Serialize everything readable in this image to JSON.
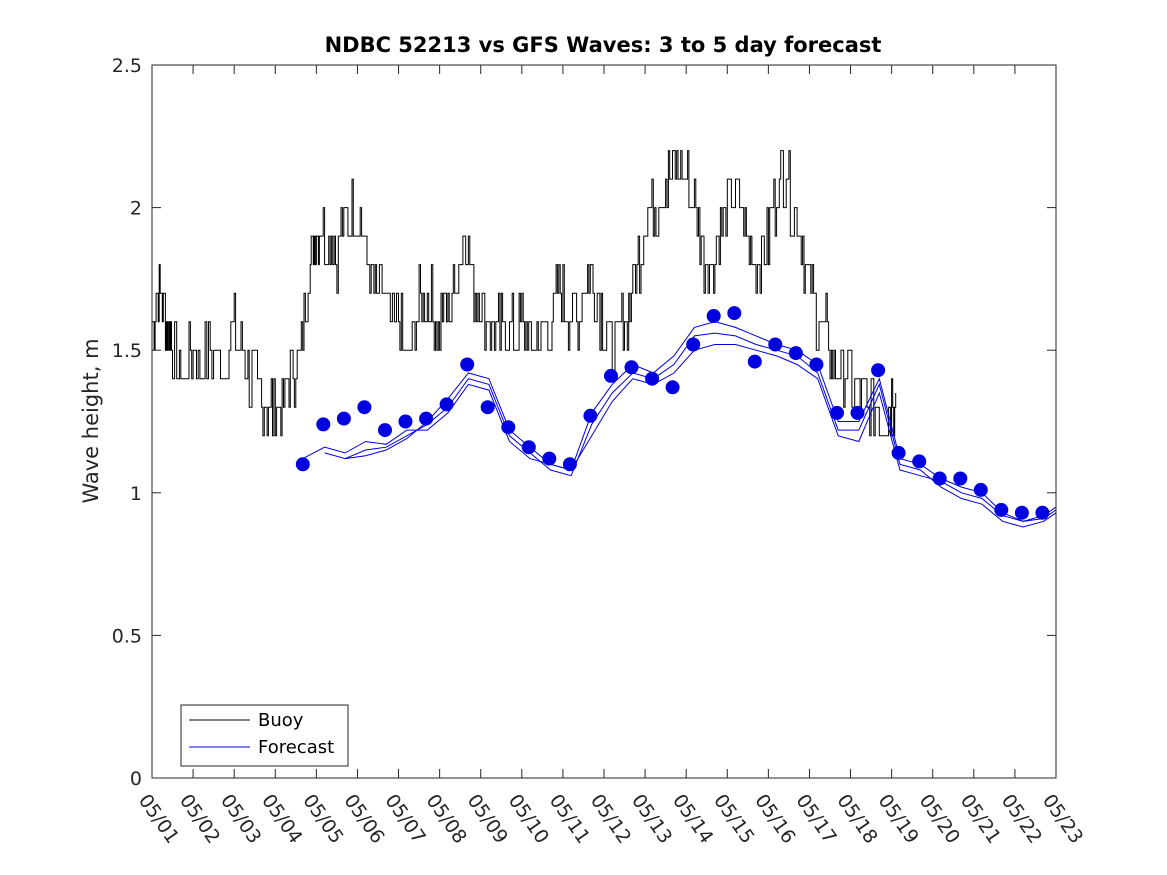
{
  "chart_data": {
    "type": "line",
    "title": "NDBC 52213 vs GFS Waves: 3 to 5 day forecast",
    "xlabel": "",
    "ylabel": "Wave height, m",
    "xlim": [
      0,
      22
    ],
    "ylim": [
      0,
      2.5
    ],
    "x_tick_labels": [
      "05/01",
      "05/02",
      "05/03",
      "05/04",
      "05/05",
      "05/06",
      "05/07",
      "05/08",
      "05/09",
      "05/10",
      "05/11",
      "05/12",
      "05/13",
      "05/14",
      "05/15",
      "05/16",
      "05/17",
      "05/18",
      "05/19",
      "05/20",
      "05/21",
      "05/22",
      "05/23"
    ],
    "y_ticks": [
      0,
      0.5,
      1,
      1.5,
      2,
      2.5
    ],
    "y_tick_labels": [
      "0",
      "0.5",
      "1",
      "1.5",
      "2",
      "2.5"
    ],
    "x_unit_note": "x values are days after 05/01 00:00",
    "grid": false,
    "legend": {
      "position": "bottom-left",
      "entries": [
        {
          "label": "Buoy",
          "color": "#000000"
        },
        {
          "label": "Forecast",
          "color": "#0000e0"
        }
      ]
    },
    "series": [
      {
        "name": "Buoy",
        "color": "#000000",
        "points": [
          [
            0,
            1.6
          ],
          [
            0.15,
            1.7
          ],
          [
            0.3,
            1.65
          ],
          [
            0.45,
            1.55
          ],
          [
            0.6,
            1.45
          ],
          [
            0.8,
            1.4
          ],
          [
            1.0,
            1.5
          ],
          [
            1.25,
            1.45
          ],
          [
            1.5,
            1.5
          ],
          [
            1.75,
            1.45
          ],
          [
            2.0,
            1.55
          ],
          [
            2.2,
            1.5
          ],
          [
            2.4,
            1.4
          ],
          [
            2.6,
            1.35
          ],
          [
            2.8,
            1.3
          ],
          [
            3.0,
            1.3
          ],
          [
            3.2,
            1.35
          ],
          [
            3.4,
            1.4
          ],
          [
            3.6,
            1.5
          ],
          [
            3.8,
            1.75
          ],
          [
            3.95,
            1.9
          ],
          [
            4.1,
            1.95
          ],
          [
            4.3,
            1.9
          ],
          [
            4.5,
            1.85
          ],
          [
            4.7,
            1.95
          ],
          [
            4.9,
            2.0
          ],
          [
            5.1,
            1.95
          ],
          [
            5.3,
            1.75
          ],
          [
            5.5,
            1.7
          ],
          [
            5.7,
            1.65
          ],
          [
            6.0,
            1.6
          ],
          [
            6.2,
            1.45
          ],
          [
            6.4,
            1.6
          ],
          [
            6.6,
            1.7
          ],
          [
            6.8,
            1.65
          ],
          [
            7.0,
            1.6
          ],
          [
            7.2,
            1.65
          ],
          [
            7.4,
            1.75
          ],
          [
            7.6,
            1.9
          ],
          [
            7.8,
            1.75
          ],
          [
            8.0,
            1.65
          ],
          [
            8.2,
            1.6
          ],
          [
            8.4,
            1.55
          ],
          [
            8.6,
            1.6
          ],
          [
            8.8,
            1.55
          ],
          [
            9.0,
            1.6
          ],
          [
            9.2,
            1.5
          ],
          [
            9.4,
            1.55
          ],
          [
            9.6,
            1.55
          ],
          [
            9.8,
            1.65
          ],
          [
            10.0,
            1.7
          ],
          [
            10.2,
            1.6
          ],
          [
            10.4,
            1.65
          ],
          [
            10.6,
            1.75
          ],
          [
            10.8,
            1.7
          ],
          [
            11.0,
            1.6
          ],
          [
            11.2,
            1.5
          ],
          [
            11.4,
            1.55
          ],
          [
            11.6,
            1.65
          ],
          [
            11.8,
            1.8
          ],
          [
            12.0,
            1.95
          ],
          [
            12.2,
            2.0
          ],
          [
            12.4,
            2.05
          ],
          [
            12.6,
            2.1
          ],
          [
            12.8,
            2.15
          ],
          [
            13.0,
            2.1
          ],
          [
            13.2,
            2.0
          ],
          [
            13.4,
            1.85
          ],
          [
            13.6,
            1.8
          ],
          [
            13.8,
            1.9
          ],
          [
            14.0,
            2.0
          ],
          [
            14.2,
            2.05
          ],
          [
            14.4,
            1.95
          ],
          [
            14.6,
            1.85
          ],
          [
            14.8,
            1.8
          ],
          [
            15.0,
            1.9
          ],
          [
            15.2,
            2.05
          ],
          [
            15.4,
            2.15
          ],
          [
            15.6,
            2.0
          ],
          [
            15.8,
            1.9
          ],
          [
            16.0,
            1.75
          ],
          [
            16.2,
            1.6
          ],
          [
            16.4,
            1.55
          ],
          [
            16.6,
            1.45
          ],
          [
            16.8,
            1.45
          ],
          [
            17.0,
            1.4
          ],
          [
            17.2,
            1.35
          ],
          [
            17.4,
            1.3
          ],
          [
            17.6,
            1.3
          ],
          [
            17.8,
            1.25
          ],
          [
            17.95,
            1.3
          ],
          [
            18.1,
            1.35
          ]
        ]
      },
      {
        "name": "Forecast",
        "color": "#0000e0",
        "markers": [
          [
            3.67,
            1.1
          ],
          [
            4.17,
            1.24
          ],
          [
            4.67,
            1.26
          ],
          [
            5.17,
            1.3
          ],
          [
            5.67,
            1.22
          ],
          [
            6.17,
            1.25
          ],
          [
            6.67,
            1.26
          ],
          [
            7.17,
            1.31
          ],
          [
            7.67,
            1.45
          ],
          [
            8.17,
            1.3
          ],
          [
            8.67,
            1.23
          ],
          [
            9.17,
            1.16
          ],
          [
            9.67,
            1.12
          ],
          [
            10.17,
            1.1
          ],
          [
            10.67,
            1.27
          ],
          [
            11.17,
            1.41
          ],
          [
            11.67,
            1.44
          ],
          [
            12.17,
            1.4
          ],
          [
            12.67,
            1.37
          ],
          [
            13.17,
            1.52
          ],
          [
            13.67,
            1.62
          ],
          [
            14.17,
            1.63
          ],
          [
            14.67,
            1.46
          ],
          [
            15.17,
            1.52
          ],
          [
            15.67,
            1.49
          ],
          [
            16.17,
            1.45
          ],
          [
            16.67,
            1.28
          ],
          [
            17.17,
            1.28
          ],
          [
            17.67,
            1.43
          ],
          [
            18.17,
            1.14
          ],
          [
            18.67,
            1.11
          ],
          [
            19.17,
            1.05
          ],
          [
            19.67,
            1.05
          ],
          [
            20.17,
            1.01
          ],
          [
            20.67,
            0.94
          ],
          [
            21.17,
            0.93
          ],
          [
            21.67,
            0.93
          ]
        ],
        "lines": [
          [
            [
              3.67,
              1.12
            ],
            [
              4.2,
              1.16
            ],
            [
              4.7,
              1.14
            ],
            [
              5.2,
              1.18
            ],
            [
              5.7,
              1.17
            ],
            [
              6.2,
              1.22
            ],
            [
              6.7,
              1.22
            ],
            [
              7.2,
              1.28
            ],
            [
              7.7,
              1.38
            ],
            [
              8.2,
              1.36
            ],
            [
              8.7,
              1.18
            ],
            [
              9.2,
              1.12
            ],
            [
              9.7,
              1.1
            ],
            [
              10.2,
              1.08
            ],
            [
              10.7,
              1.2
            ],
            [
              11.2,
              1.32
            ],
            [
              11.7,
              1.4
            ],
            [
              12.2,
              1.38
            ],
            [
              12.7,
              1.42
            ],
            [
              13.2,
              1.5
            ],
            [
              13.7,
              1.52
            ],
            [
              14.2,
              1.52
            ],
            [
              14.7,
              1.5
            ],
            [
              15.2,
              1.48
            ],
            [
              15.7,
              1.45
            ],
            [
              16.2,
              1.4
            ],
            [
              16.7,
              1.2
            ],
            [
              17.2,
              1.18
            ],
            [
              17.7,
              1.35
            ],
            [
              18.2,
              1.08
            ],
            [
              18.7,
              1.06
            ],
            [
              19.2,
              1.04
            ],
            [
              19.7,
              1.0
            ],
            [
              20.2,
              0.98
            ],
            [
              20.7,
              0.92
            ],
            [
              21.2,
              0.9
            ],
            [
              21.7,
              0.92
            ],
            [
              22.0,
              0.95
            ]
          ],
          [
            [
              4.2,
              1.14
            ],
            [
              4.7,
              1.12
            ],
            [
              5.2,
              1.15
            ],
            [
              5.7,
              1.16
            ],
            [
              6.2,
              1.2
            ],
            [
              6.7,
              1.24
            ],
            [
              7.2,
              1.3
            ],
            [
              7.7,
              1.4
            ],
            [
              8.2,
              1.38
            ],
            [
              8.7,
              1.2
            ],
            [
              9.2,
              1.14
            ],
            [
              9.7,
              1.08
            ],
            [
              10.2,
              1.06
            ],
            [
              10.7,
              1.24
            ],
            [
              11.2,
              1.35
            ],
            [
              11.7,
              1.42
            ],
            [
              12.2,
              1.4
            ],
            [
              12.7,
              1.45
            ],
            [
              13.2,
              1.55
            ],
            [
              13.7,
              1.56
            ],
            [
              14.2,
              1.55
            ],
            [
              14.7,
              1.52
            ],
            [
              15.2,
              1.5
            ],
            [
              15.7,
              1.48
            ],
            [
              16.2,
              1.42
            ],
            [
              16.7,
              1.22
            ],
            [
              17.2,
              1.22
            ],
            [
              17.7,
              1.38
            ],
            [
              18.2,
              1.1
            ],
            [
              18.7,
              1.08
            ],
            [
              19.2,
              1.02
            ],
            [
              19.7,
              0.98
            ],
            [
              20.2,
              0.96
            ],
            [
              20.7,
              0.9
            ],
            [
              21.2,
              0.88
            ],
            [
              21.7,
              0.9
            ],
            [
              22.0,
              0.93
            ]
          ],
          [
            [
              4.7,
              1.12
            ],
            [
              5.2,
              1.13
            ],
            [
              5.7,
              1.15
            ],
            [
              6.2,
              1.19
            ],
            [
              6.7,
              1.25
            ],
            [
              7.2,
              1.33
            ],
            [
              7.7,
              1.42
            ],
            [
              8.2,
              1.4
            ],
            [
              8.7,
              1.22
            ],
            [
              9.2,
              1.16
            ],
            [
              9.7,
              1.1
            ],
            [
              10.2,
              1.08
            ],
            [
              10.7,
              1.28
            ],
            [
              11.2,
              1.38
            ],
            [
              11.7,
              1.45
            ],
            [
              12.2,
              1.42
            ],
            [
              12.7,
              1.48
            ],
            [
              13.2,
              1.58
            ],
            [
              13.7,
              1.6
            ],
            [
              14.2,
              1.58
            ],
            [
              14.7,
              1.55
            ],
            [
              15.2,
              1.52
            ],
            [
              15.7,
              1.5
            ],
            [
              16.2,
              1.45
            ],
            [
              16.7,
              1.25
            ],
            [
              17.2,
              1.25
            ],
            [
              17.7,
              1.4
            ],
            [
              18.2,
              1.12
            ],
            [
              18.7,
              1.1
            ],
            [
              19.2,
              1.05
            ],
            [
              19.7,
              1.02
            ],
            [
              20.2,
              1.0
            ],
            [
              20.7,
              0.93
            ],
            [
              21.2,
              0.9
            ],
            [
              21.7,
              0.91
            ],
            [
              22.0,
              0.94
            ]
          ]
        ]
      }
    ]
  }
}
